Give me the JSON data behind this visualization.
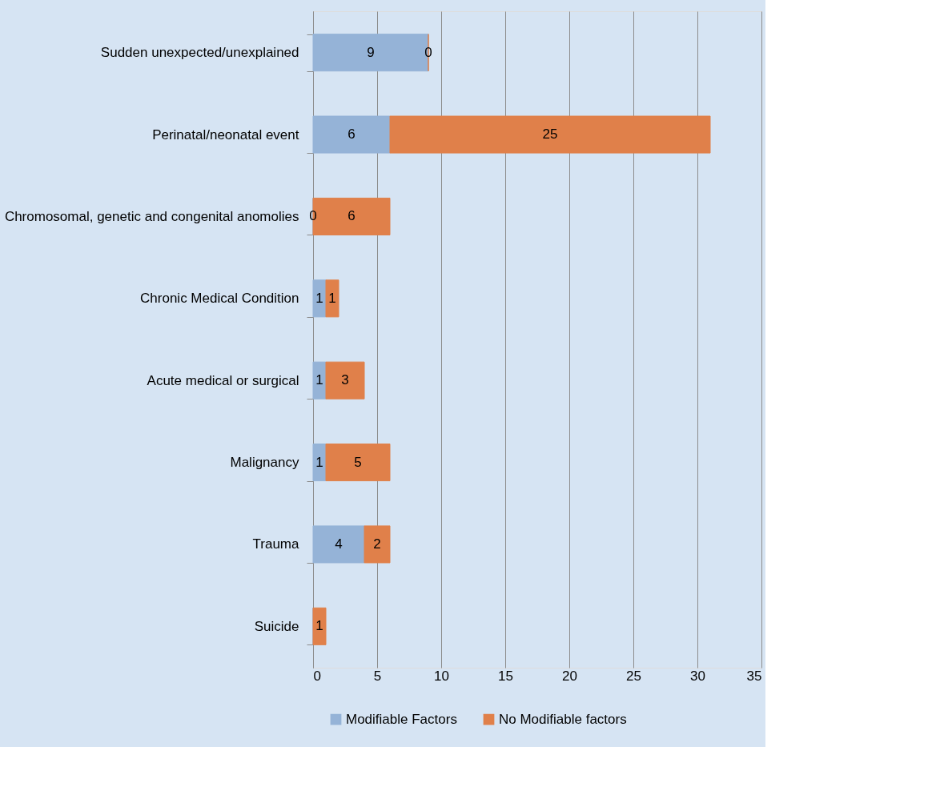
{
  "chart_data": {
    "type": "bar",
    "orientation": "horizontal",
    "stacked": true,
    "categories": [
      "Sudden unexpected/unexplained",
      "Perinatal/neonatal event",
      "Chromosomal, genetic and congenital anomolies",
      "Chronic Medical Condition",
      "Acute medical or surgical",
      "Malignancy",
      "Trauma",
      "Suicide"
    ],
    "series": [
      {
        "name": "Modifiable Factors",
        "color": "#95b3d7",
        "values": [
          9,
          6,
          0,
          1,
          1,
          1,
          4,
          0
        ],
        "value_labels": [
          "9",
          "6",
          "0",
          "1",
          "1",
          "1",
          "4",
          null
        ]
      },
      {
        "name": "No Modifiable factors",
        "color": "#e0804a",
        "values": [
          0,
          25,
          6,
          1,
          3,
          5,
          2,
          1
        ],
        "value_labels": [
          "0",
          "25",
          "6",
          "1",
          "3",
          "5",
          "2",
          "1"
        ]
      }
    ],
    "xlim": [
      0,
      35
    ],
    "xticks": [
      0,
      5,
      10,
      15,
      20,
      25,
      30,
      35
    ],
    "grid": "x",
    "legend": "bottom"
  }
}
